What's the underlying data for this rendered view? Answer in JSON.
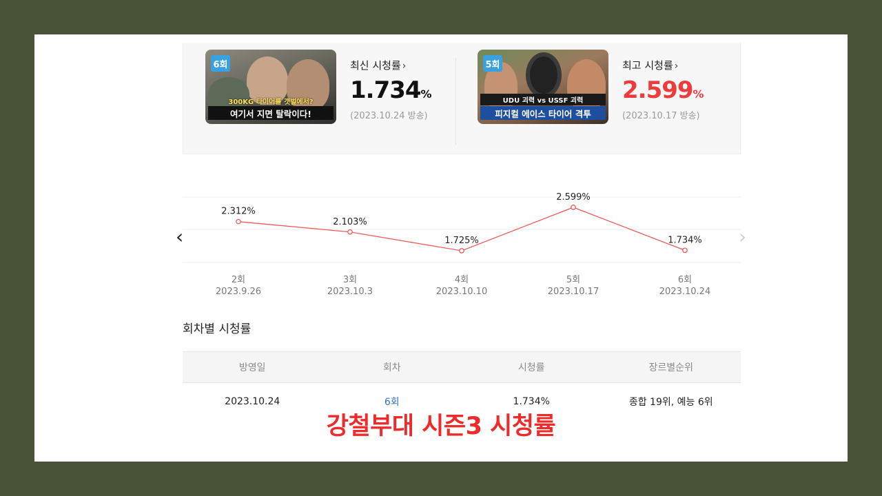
{
  "summary": {
    "latest": {
      "badge": "6회",
      "caption_top": "300KG 타이어를 갯벌에서?",
      "caption_bottom": "여기서 지면 탈락이다!",
      "label": "최신 시청률",
      "value": "1.734",
      "unit": "%",
      "date": "(2023.10.24 방송)"
    },
    "best": {
      "badge": "5회",
      "caption_top": "UDU 괴력 vs USSF 괴력",
      "caption_bottom": "피지컬 에이스 타이어 격투",
      "label": "최고 시청률",
      "value": "2.599",
      "unit": "%",
      "date": "(2023.10.17 방송)"
    },
    "chevron": "›"
  },
  "chart_data": {
    "type": "line",
    "categories": [
      "2회",
      "3회",
      "4회",
      "5회",
      "6회"
    ],
    "dates": [
      "2023.9.26",
      "2023.10.3",
      "2023.10.10",
      "2023.10.17",
      "2023.10.24"
    ],
    "values": [
      2.312,
      2.103,
      1.725,
      2.599,
      1.734
    ],
    "labels": [
      "2.312%",
      "2.103%",
      "1.725%",
      "2.599%",
      "1.734%"
    ],
    "line_color": "#ee5a5a",
    "grid": true
  },
  "nav": {
    "prev": "‹",
    "next": "›"
  },
  "section_title": "회차별 시청률",
  "table": {
    "headers": [
      "방영일",
      "회차",
      "시청률",
      "장르별순위"
    ],
    "row": [
      "2023.10.24",
      "6회",
      "1.734%",
      "종합 19위, 예능 6위"
    ]
  },
  "footer_title": "강철부대 시즌3 시청률"
}
